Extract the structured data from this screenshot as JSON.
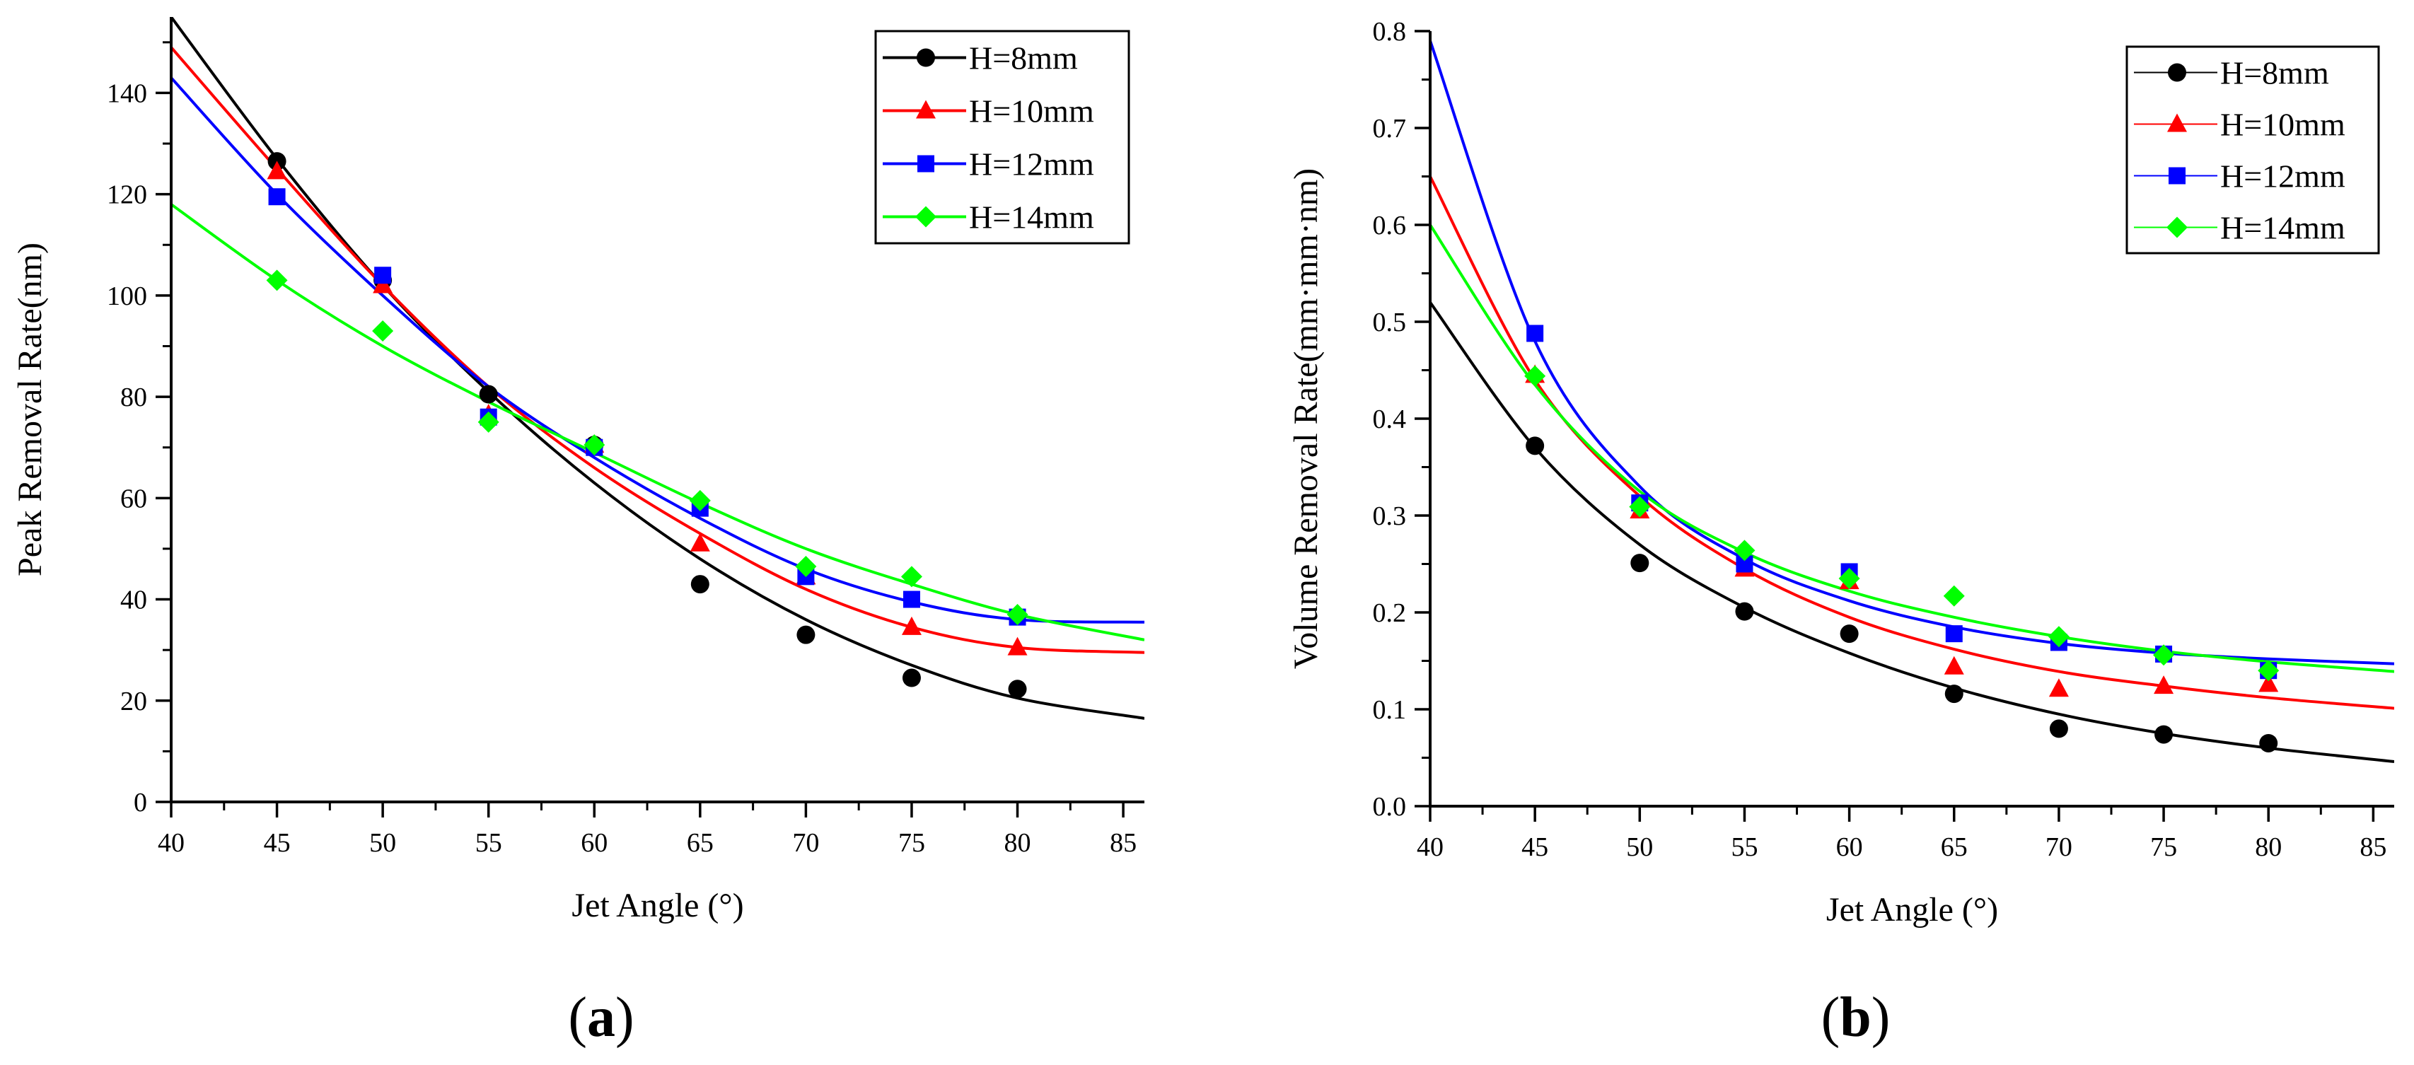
{
  "chart_data": [
    {
      "type": "scatter",
      "panel_label": {
        "open": "(",
        "letter": "a",
        "close": ")"
      },
      "xlabel": "Jet Angle (°)",
      "ylabel": "Peak Removal Rate(nm)",
      "xlim": [
        40,
        86
      ],
      "ylim": [
        0,
        155
      ],
      "xticks": [
        40,
        45,
        50,
        55,
        60,
        65,
        70,
        75,
        80,
        85
      ],
      "yticks": [
        0,
        20,
        40,
        60,
        80,
        100,
        120,
        140
      ],
      "legend_position": "top-right",
      "x": [
        45,
        50,
        55,
        60,
        65,
        70,
        75,
        80
      ],
      "series": [
        {
          "name": "H=8mm",
          "marker": "circle",
          "color": "#000000",
          "points": [
            126.5,
            103.0,
            80.5,
            70.5,
            43.0,
            33.0,
            24.5,
            22.3
          ],
          "fit": [
            [
              40,
              155
            ],
            [
              45,
              127
            ],
            [
              50,
              102
            ],
            [
              55,
              81
            ],
            [
              60,
              63
            ],
            [
              65,
              48
            ],
            [
              70,
              36
            ],
            [
              75,
              27
            ],
            [
              80,
              20.5
            ],
            [
              86,
              16.5
            ]
          ]
        },
        {
          "name": "H=10mm",
          "marker": "triangle",
          "color": "#ff0000",
          "points": [
            124.5,
            102.0,
            76.5,
            70.5,
            51.0,
            44.5,
            34.5,
            30.5
          ],
          "fit": [
            [
              40,
              149
            ],
            [
              45,
              125
            ],
            [
              50,
              102
            ],
            [
              55,
              82
            ],
            [
              60,
              66
            ],
            [
              65,
              53
            ],
            [
              70,
              42
            ],
            [
              75,
              34.5
            ],
            [
              80,
              30.5
            ],
            [
              86,
              29.5
            ]
          ]
        },
        {
          "name": "H=12mm",
          "marker": "square",
          "color": "#0000ff",
          "points": [
            119.5,
            104.0,
            76.0,
            70.0,
            58.0,
            44.5,
            40.0,
            36.5
          ],
          "fit": [
            [
              40,
              143
            ],
            [
              45,
              120
            ],
            [
              50,
              100
            ],
            [
              55,
              82
            ],
            [
              60,
              68
            ],
            [
              65,
              56
            ],
            [
              70,
              46
            ],
            [
              75,
              39.5
            ],
            [
              80,
              36
            ],
            [
              86,
              35.5
            ]
          ]
        },
        {
          "name": "H=14mm",
          "marker": "diamond",
          "color": "#00ff00",
          "points": [
            103.0,
            93.0,
            75.0,
            70.5,
            59.5,
            46.5,
            44.5,
            37.0
          ],
          "fit": [
            [
              40,
              118
            ],
            [
              45,
              103
            ],
            [
              50,
              90
            ],
            [
              55,
              79
            ],
            [
              60,
              69
            ],
            [
              65,
              59
            ],
            [
              70,
              50
            ],
            [
              75,
              43
            ],
            [
              80,
              37
            ],
            [
              86,
              32
            ]
          ]
        }
      ]
    },
    {
      "type": "scatter",
      "panel_label": {
        "open": "(",
        "letter": "b",
        "close": ")"
      },
      "xlabel": "Jet Angle (°)",
      "ylabel": "Volume Removal Rate(mm·mm·nm)",
      "xlim": [
        40,
        86
      ],
      "ylim": [
        0,
        0.8
      ],
      "xticks": [
        40,
        45,
        50,
        55,
        60,
        65,
        70,
        75,
        80,
        85
      ],
      "yticks": [
        0.0,
        0.1,
        0.2,
        0.3,
        0.4,
        0.5,
        0.6,
        0.7,
        0.8
      ],
      "legend_position": "top-right",
      "x": [
        45,
        50,
        55,
        60,
        65,
        70,
        75,
        80
      ],
      "series": [
        {
          "name": "H=8mm",
          "marker": "circle",
          "color": "#000000",
          "points": [
            0.372,
            0.251,
            0.201,
            0.178,
            0.116,
            0.08,
            0.074,
            0.065
          ],
          "fit": [
            [
              40,
              0.52
            ],
            [
              45,
              0.37
            ],
            [
              50,
              0.27
            ],
            [
              55,
              0.205
            ],
            [
              60,
              0.158
            ],
            [
              65,
              0.122
            ],
            [
              70,
              0.095
            ],
            [
              75,
              0.075
            ],
            [
              80,
              0.06
            ],
            [
              86,
              0.046
            ]
          ]
        },
        {
          "name": "H=10mm",
          "marker": "triangle",
          "color": "#ff0000",
          "points": [
            0.445,
            0.305,
            0.245,
            0.232,
            0.144,
            0.121,
            0.124,
            0.126
          ],
          "fit": [
            [
              40,
              0.65
            ],
            [
              45,
              0.44
            ],
            [
              50,
              0.32
            ],
            [
              55,
              0.245
            ],
            [
              60,
              0.195
            ],
            [
              65,
              0.162
            ],
            [
              70,
              0.139
            ],
            [
              75,
              0.124
            ],
            [
              80,
              0.112
            ],
            [
              86,
              0.101
            ]
          ]
        },
        {
          "name": "H=12mm",
          "marker": "square",
          "color": "#0000ff",
          "points": [
            0.488,
            0.313,
            0.25,
            0.242,
            0.178,
            0.169,
            0.157,
            0.14
          ],
          "fit": [
            [
              40,
              0.79
            ],
            [
              45,
              0.48
            ],
            [
              50,
              0.33
            ],
            [
              55,
              0.255
            ],
            [
              60,
              0.212
            ],
            [
              65,
              0.185
            ],
            [
              70,
              0.168
            ],
            [
              75,
              0.158
            ],
            [
              80,
              0.152
            ],
            [
              86,
              0.147
            ]
          ]
        },
        {
          "name": "H=14mm",
          "marker": "diamond",
          "color": "#00ff00",
          "points": [
            0.444,
            0.309,
            0.264,
            0.235,
            0.217,
            0.175,
            0.156,
            0.14
          ],
          "fit": [
            [
              40,
              0.6
            ],
            [
              45,
              0.435
            ],
            [
              50,
              0.325
            ],
            [
              55,
              0.262
            ],
            [
              60,
              0.222
            ],
            [
              65,
              0.195
            ],
            [
              70,
              0.175
            ],
            [
              75,
              0.16
            ],
            [
              80,
              0.149
            ],
            [
              86,
              0.139
            ]
          ]
        }
      ]
    }
  ]
}
